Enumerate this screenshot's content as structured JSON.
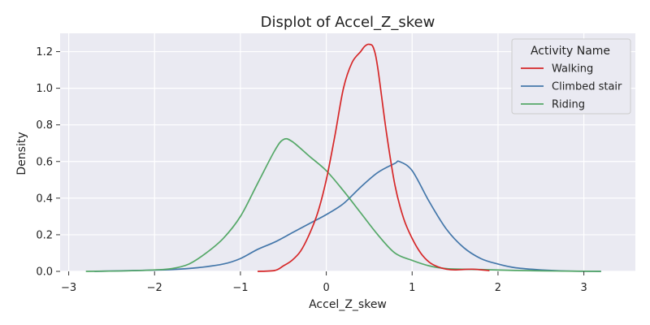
{
  "chart_data": {
    "type": "line",
    "title": "Displot of Accel_Z_skew",
    "xlabel": "Accel_Z_skew",
    "ylabel": "Density",
    "xlim": [
      -3.1,
      3.6
    ],
    "ylim": [
      0,
      1.3
    ],
    "xticks": [
      -3,
      -2,
      -1,
      0,
      1,
      2,
      3
    ],
    "xtick_labels": [
      "−3",
      "−2",
      "−1",
      "0",
      "1",
      "2",
      "3"
    ],
    "yticks": [
      0.0,
      0.2,
      0.4,
      0.6,
      0.8,
      1.0,
      1.2
    ],
    "ytick_labels": [
      "0.0",
      "0.2",
      "0.4",
      "0.6",
      "0.8",
      "1.0",
      "1.2"
    ],
    "grid": true,
    "background": "#eaeaf2",
    "legend": {
      "title": "Activity Name",
      "position": "top-right"
    },
    "series": [
      {
        "name": "Walking",
        "color": "#d62728",
        "x": [
          -0.8,
          -0.6,
          -0.5,
          -0.4,
          -0.3,
          -0.2,
          -0.1,
          0.0,
          0.1,
          0.2,
          0.3,
          0.4,
          0.45,
          0.5,
          0.55,
          0.6,
          0.7,
          0.8,
          0.9,
          1.0,
          1.1,
          1.2,
          1.3,
          1.4,
          1.5,
          1.7,
          1.9
        ],
        "y": [
          0.0,
          0.005,
          0.03,
          0.06,
          0.11,
          0.2,
          0.32,
          0.5,
          0.74,
          1.0,
          1.14,
          1.2,
          1.23,
          1.24,
          1.22,
          1.11,
          0.76,
          0.47,
          0.29,
          0.18,
          0.1,
          0.05,
          0.025,
          0.012,
          0.008,
          0.012,
          0.004
        ]
      },
      {
        "name": "Climbed stair",
        "color": "#4477aa",
        "x": [
          -2.7,
          -2.2,
          -1.8,
          -1.5,
          -1.2,
          -1.0,
          -0.8,
          -0.6,
          -0.4,
          -0.2,
          0.0,
          0.2,
          0.4,
          0.6,
          0.8,
          0.85,
          1.0,
          1.2,
          1.4,
          1.6,
          1.8,
          2.0,
          2.2,
          2.5,
          2.8,
          3.2
        ],
        "y": [
          0.0,
          0.005,
          0.01,
          0.02,
          0.04,
          0.07,
          0.12,
          0.16,
          0.21,
          0.26,
          0.31,
          0.37,
          0.46,
          0.54,
          0.59,
          0.6,
          0.55,
          0.38,
          0.23,
          0.13,
          0.07,
          0.04,
          0.02,
          0.008,
          0.002,
          0.0
        ]
      },
      {
        "name": "Riding",
        "color": "#55a868",
        "x": [
          -2.8,
          -2.3,
          -2.0,
          -1.8,
          -1.6,
          -1.4,
          -1.2,
          -1.0,
          -0.8,
          -0.6,
          -0.5,
          -0.4,
          -0.2,
          0.0,
          0.2,
          0.4,
          0.6,
          0.8,
          1.0,
          1.2,
          1.4,
          1.6,
          1.8,
          2.2,
          2.7,
          3.2
        ],
        "y": [
          0.0,
          0.003,
          0.008,
          0.015,
          0.04,
          0.1,
          0.18,
          0.3,
          0.48,
          0.66,
          0.72,
          0.71,
          0.63,
          0.55,
          0.44,
          0.32,
          0.2,
          0.1,
          0.06,
          0.03,
          0.015,
          0.012,
          0.01,
          0.005,
          0.002,
          0.0
        ]
      }
    ]
  }
}
